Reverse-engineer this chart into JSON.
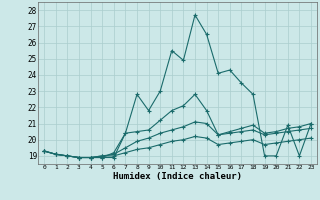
{
  "xlabel": "Humidex (Indice chaleur)",
  "bg_color": "#cce8e8",
  "line_color": "#1a6b6b",
  "grid_color": "#aacece",
  "xlim": [
    -0.5,
    23.5
  ],
  "ylim": [
    18.5,
    28.5
  ],
  "xticks": [
    0,
    1,
    2,
    3,
    4,
    5,
    6,
    7,
    8,
    9,
    10,
    11,
    12,
    13,
    14,
    15,
    16,
    17,
    18,
    19,
    20,
    21,
    22,
    23
  ],
  "yticks": [
    19,
    20,
    21,
    22,
    23,
    24,
    25,
    26,
    27,
    28
  ],
  "series": [
    [
      19.3,
      19.1,
      19.0,
      18.9,
      18.9,
      18.9,
      18.9,
      20.4,
      22.8,
      21.8,
      23.0,
      25.5,
      24.9,
      27.7,
      26.5,
      24.1,
      24.3,
      23.5,
      22.8,
      19.0,
      19.0,
      20.9,
      19.0,
      21.0
    ],
    [
      19.3,
      19.1,
      19.0,
      18.9,
      18.9,
      18.9,
      19.2,
      20.4,
      20.5,
      20.6,
      21.2,
      21.8,
      22.1,
      22.8,
      21.8,
      20.3,
      20.5,
      20.7,
      20.9,
      20.4,
      20.5,
      20.7,
      20.8,
      21.0
    ],
    [
      19.3,
      19.1,
      19.0,
      18.9,
      18.9,
      19.0,
      19.1,
      19.5,
      19.9,
      20.1,
      20.4,
      20.6,
      20.8,
      21.1,
      21.0,
      20.3,
      20.4,
      20.5,
      20.6,
      20.3,
      20.4,
      20.5,
      20.6,
      20.7
    ],
    [
      19.3,
      19.1,
      19.0,
      18.9,
      18.9,
      19.0,
      19.0,
      19.2,
      19.4,
      19.5,
      19.7,
      19.9,
      20.0,
      20.2,
      20.1,
      19.7,
      19.8,
      19.9,
      20.0,
      19.7,
      19.8,
      19.9,
      20.0,
      20.1
    ]
  ]
}
